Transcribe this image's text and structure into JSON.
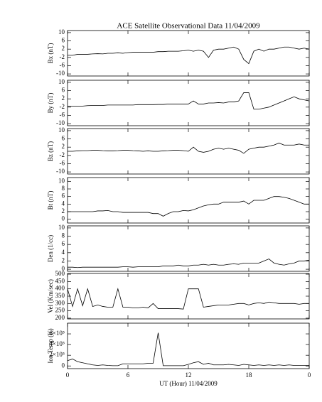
{
  "chart_data": [
    {
      "type": "line",
      "title": "ACE Satellite Observational Data   11/04/2009",
      "ylabel": "Bx (nT)",
      "ylim": [
        -11,
        11
      ],
      "yticks": [
        -10,
        -6,
        -2,
        2,
        6,
        10
      ],
      "x": [
        0,
        0.5,
        1,
        1.5,
        2,
        2.5,
        3,
        3.5,
        4,
        4.5,
        5,
        5.5,
        6,
        6.5,
        7,
        7.5,
        8,
        8.5,
        9,
        9.5,
        10,
        10.5,
        11,
        11.5,
        12,
        12.5,
        13,
        13.5,
        14,
        14.5,
        15,
        15.5,
        16,
        16.5,
        17,
        17.5,
        18,
        18.5,
        19,
        19.5,
        20,
        20.5,
        21,
        21.5,
        22,
        22.5,
        23,
        23.5,
        24
      ],
      "series": [
        {
          "color": "#000000",
          "values": [
            -1,
            -1,
            -0.5,
            -0.5,
            -0.5,
            -0.3,
            -0.2,
            -0.3,
            0,
            0,
            0.2,
            0,
            0.3,
            0.5,
            0.5,
            0.5,
            0.5,
            0.5,
            0.8,
            0.8,
            1,
            1,
            1,
            1.2,
            1.5,
            1,
            1.5,
            1,
            -2,
            1.5,
            2,
            2,
            2.5,
            3,
            2,
            -3,
            -5,
            1,
            2,
            1,
            2,
            2,
            2.5,
            3,
            3,
            2.5,
            2,
            2.5,
            2
          ]
        }
      ]
    },
    {
      "type": "line",
      "ylabel": "By (nT)",
      "ylim": [
        -11,
        11
      ],
      "yticks": [
        -10,
        -6,
        -2,
        2,
        6,
        10
      ],
      "x": [
        0,
        0.5,
        1,
        1.5,
        2,
        2.5,
        3,
        3.5,
        4,
        4.5,
        5,
        5.5,
        6,
        6.5,
        7,
        7.5,
        8,
        8.5,
        9,
        9.5,
        10,
        10.5,
        11,
        11.5,
        12,
        12.5,
        13,
        13.5,
        14,
        14.5,
        15,
        15.5,
        16,
        16.5,
        17,
        17.5,
        18,
        18.5,
        19,
        19.5,
        20,
        20.5,
        21,
        21.5,
        22,
        22.5,
        23,
        23.5,
        24
      ],
      "series": [
        {
          "color": "#000000",
          "values": [
            -1.5,
            -1.5,
            -1.5,
            -1.5,
            -1.3,
            -1.2,
            -1.2,
            -1.2,
            -1,
            -1,
            -1,
            -1,
            -1,
            -1,
            -0.8,
            -0.8,
            -0.8,
            -0.8,
            -0.7,
            -0.7,
            -0.5,
            -0.5,
            -0.5,
            -0.5,
            -0.5,
            1,
            -0.5,
            -0.5,
            0,
            0,
            0.2,
            0,
            0.5,
            0.5,
            1,
            5,
            5,
            -3,
            -3,
            -2.5,
            -2,
            -1,
            0,
            1,
            2,
            3,
            2,
            1.5,
            1
          ]
        }
      ]
    },
    {
      "type": "line",
      "ylabel": "Bz (nT)",
      "ylim": [
        -11,
        11
      ],
      "yticks": [
        -10,
        -6,
        -2,
        2,
        6,
        10
      ],
      "x": [
        0,
        0.5,
        1,
        1.5,
        2,
        2.5,
        3,
        3.5,
        4,
        4.5,
        5,
        5.5,
        6,
        6.5,
        7,
        7.5,
        8,
        8.5,
        9,
        9.5,
        10,
        10.5,
        11,
        11.5,
        12,
        12.5,
        13,
        13.5,
        14,
        14.5,
        15,
        15.5,
        16,
        16.5,
        17,
        17.5,
        18,
        18.5,
        19,
        19.5,
        20,
        20.5,
        21,
        21.5,
        22,
        22.5,
        23,
        23.5,
        24
      ],
      "series": [
        {
          "color": "#000000",
          "values": [
            0,
            0,
            0.2,
            0.3,
            0.3,
            0.5,
            0.5,
            0.3,
            0.2,
            0.2,
            0.3,
            0.5,
            0.5,
            0.3,
            0.2,
            0,
            0.2,
            0,
            0,
            0.2,
            0.3,
            0.5,
            0.5,
            0.3,
            0,
            2,
            0,
            -0.5,
            0,
            1,
            1.5,
            1,
            1.5,
            1,
            0.5,
            -1,
            1,
            1.5,
            2,
            2,
            2.5,
            3,
            4,
            3,
            3,
            3,
            3.5,
            3,
            3
          ]
        }
      ]
    },
    {
      "type": "line",
      "ylabel": "Bt (nT)",
      "ylim": [
        -1,
        11
      ],
      "yticks": [
        0,
        2,
        4,
        6,
        8,
        10
      ],
      "x": [
        0,
        0.5,
        1,
        1.5,
        2,
        2.5,
        3,
        3.5,
        4,
        4.5,
        5,
        5.5,
        6,
        6.5,
        7,
        7.5,
        8,
        8.5,
        9,
        9.5,
        10,
        10.5,
        11,
        11.5,
        12,
        12.5,
        13,
        13.5,
        14,
        14.5,
        15,
        15.5,
        16,
        16.5,
        17,
        17.5,
        18,
        18.5,
        19,
        19.5,
        20,
        20.5,
        21,
        21.5,
        22,
        22.5,
        23,
        23.5,
        24
      ],
      "series": [
        {
          "color": "#000000",
          "values": [
            2,
            2,
            2,
            2,
            2,
            2,
            2.2,
            2.2,
            2.3,
            2,
            2,
            1.8,
            1.8,
            1.8,
            1.8,
            1.8,
            1.8,
            1.5,
            1.5,
            0.8,
            1.5,
            2,
            2,
            2.3,
            2.2,
            2.5,
            3,
            3.5,
            3.8,
            4,
            4,
            4.5,
            4.5,
            4.5,
            4.5,
            4.8,
            4,
            5,
            5,
            5,
            5.5,
            6,
            6,
            5.8,
            5.5,
            5,
            4.5,
            4,
            4
          ]
        }
      ]
    },
    {
      "type": "line",
      "ylabel": "Den (1/cc)",
      "ylim": [
        -0.5,
        10.5
      ],
      "yticks": [
        0,
        2,
        4,
        6,
        8,
        10
      ],
      "x": [
        0,
        0.5,
        1,
        1.5,
        2,
        2.5,
        3,
        3.5,
        4,
        4.5,
        5,
        5.5,
        6,
        6.5,
        7,
        7.5,
        8,
        8.5,
        9,
        9.5,
        10,
        10.5,
        11,
        11.5,
        12,
        12.5,
        13,
        13.5,
        14,
        14.5,
        15,
        15.5,
        16,
        16.5,
        17,
        17.5,
        18,
        18.5,
        19,
        19.5,
        20,
        20.5,
        21,
        21.5,
        22,
        22.5,
        23,
        23.5,
        24
      ],
      "series": [
        {
          "color": "#000000",
          "values": [
            0.5,
            0.5,
            0.4,
            0.5,
            0.5,
            0.5,
            0.5,
            0.5,
            0.5,
            0.5,
            0.5,
            0.6,
            0.6,
            0.5,
            0.6,
            0.6,
            0.6,
            0.6,
            0.6,
            0.8,
            0.8,
            0.8,
            1,
            0.8,
            0.8,
            1,
            1,
            1.2,
            1,
            1.2,
            1,
            1,
            1.2,
            1.3,
            1.2,
            1.5,
            1.5,
            1.5,
            1.5,
            2,
            2.5,
            1.5,
            1.2,
            1,
            1.3,
            1.5,
            2,
            2,
            2.2
          ]
        }
      ]
    },
    {
      "type": "line",
      "ylabel": "Vel (Km/sec)",
      "ylim": [
        195,
        505
      ],
      "yticks": [
        200,
        250,
        300,
        350,
        400,
        450,
        500
      ],
      "x": [
        0,
        0.5,
        1,
        1.5,
        2,
        2.5,
        3,
        3.5,
        4,
        4.5,
        5,
        5.5,
        6,
        6.5,
        7,
        7.5,
        8,
        8.5,
        9,
        9.5,
        10,
        10.5,
        11,
        11.5,
        12,
        12.5,
        13,
        13.5,
        14,
        14.5,
        15,
        15.5,
        16,
        16.5,
        17,
        17.5,
        18,
        18.5,
        19,
        19.5,
        20,
        20.5,
        21,
        21.5,
        22,
        22.5,
        23,
        23.5,
        24
      ],
      "series": [
        {
          "color": "#000000",
          "values": [
            400,
            280,
            400,
            285,
            400,
            280,
            290,
            280,
            275,
            275,
            400,
            275,
            275,
            270,
            270,
            275,
            270,
            300,
            265,
            265,
            265,
            265,
            265,
            262,
            400,
            400,
            400,
            275,
            280,
            285,
            290,
            290,
            290,
            295,
            300,
            300,
            290,
            300,
            305,
            300,
            310,
            305,
            300,
            300,
            300,
            300,
            295,
            300,
            300
          ]
        }
      ]
    },
    {
      "type": "line",
      "ylabel": "Ion Temp (K)",
      "xlabel": "UT (Hour)  11/04/2009",
      "ylim": [
        -50000,
        800000
      ],
      "yticks": [
        0,
        {
          "value": 200000,
          "label": "2×10⁵"
        },
        {
          "value": 400000,
          "label": "4×10⁵"
        },
        {
          "value": 600000,
          "label": "6×10⁵"
        }
      ],
      "xlim": [
        0,
        24
      ],
      "xticks": [
        0,
        6,
        12,
        18,
        {
          "value": 24,
          "label": "0"
        }
      ],
      "x": [
        0,
        0.5,
        1,
        1.5,
        2,
        2.5,
        3,
        3.5,
        4,
        4.5,
        5,
        5.5,
        6,
        6.5,
        7,
        7.5,
        8,
        8.5,
        9,
        9.5,
        10,
        10.5,
        11,
        11.5,
        12,
        12.5,
        13,
        13.5,
        14,
        14.5,
        15,
        15.5,
        16,
        16.5,
        17,
        17.5,
        18,
        18.5,
        19,
        19.5,
        20,
        20.5,
        21,
        21.5,
        22,
        22.5,
        23,
        23.5,
        24
      ],
      "series": [
        {
          "color": "#000000",
          "values": [
            100000,
            130000,
            80000,
            60000,
            40000,
            20000,
            10000,
            20000,
            10000,
            5000,
            5000,
            40000,
            40000,
            40000,
            40000,
            40000,
            50000,
            50000,
            620000,
            5000,
            5000,
            5000,
            5000,
            5000,
            30000,
            60000,
            80000,
            30000,
            50000,
            20000,
            20000,
            20000,
            30000,
            20000,
            10000,
            30000,
            20000,
            10000,
            20000,
            10000,
            20000,
            10000,
            20000,
            10000,
            20000,
            10000,
            10000,
            10000,
            10000
          ]
        }
      ]
    }
  ]
}
